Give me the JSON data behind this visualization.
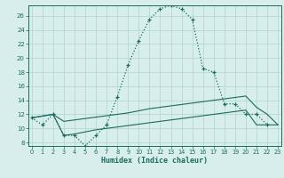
{
  "xlabel": "Humidex (Indice chaleur)",
  "bg_color": "#d8eeec",
  "grid_color": "#aed4d0",
  "line_color": "#1a6b5e",
  "x_ticks": [
    0,
    1,
    2,
    3,
    4,
    5,
    6,
    7,
    8,
    9,
    10,
    11,
    12,
    13,
    14,
    15,
    16,
    17,
    18,
    19,
    20,
    21,
    22,
    23
  ],
  "y_ticks": [
    8,
    10,
    12,
    14,
    16,
    18,
    20,
    22,
    24,
    26
  ],
  "xlim": [
    -0.3,
    23.3
  ],
  "ylim": [
    7.5,
    27.5
  ],
  "main_x": [
    0,
    1,
    2,
    3,
    4,
    5,
    6,
    7,
    8,
    9,
    10,
    11,
    12,
    13,
    14,
    15,
    16,
    17,
    18,
    19,
    20,
    21,
    22
  ],
  "main_y": [
    11.5,
    10.5,
    12.0,
    9.0,
    9.0,
    7.5,
    9.0,
    10.5,
    14.5,
    19.0,
    22.5,
    25.5,
    27.0,
    27.5,
    27.0,
    25.5,
    18.5,
    18.0,
    13.5,
    13.5,
    12.0,
    12.0,
    10.5
  ],
  "line2_x": [
    0,
    2,
    3,
    4,
    5,
    6,
    7,
    8,
    9,
    10,
    11,
    12,
    13,
    14,
    15,
    16,
    17,
    18,
    19,
    20,
    21,
    22,
    23
  ],
  "line2_y": [
    11.5,
    12.0,
    9.0,
    9.2,
    9.5,
    9.8,
    10.0,
    10.2,
    10.4,
    10.6,
    10.8,
    11.0,
    11.2,
    11.4,
    11.6,
    11.8,
    12.0,
    12.2,
    12.4,
    12.6,
    10.5,
    10.5,
    10.5
  ],
  "line3_x": [
    0,
    2,
    3,
    4,
    5,
    6,
    7,
    8,
    9,
    10,
    11,
    12,
    13,
    14,
    15,
    16,
    17,
    18,
    19,
    20,
    21,
    22,
    23
  ],
  "line3_y": [
    11.5,
    12.0,
    11.0,
    11.2,
    11.4,
    11.6,
    11.8,
    12.0,
    12.2,
    12.5,
    12.8,
    13.0,
    13.2,
    13.4,
    13.6,
    13.8,
    14.0,
    14.2,
    14.4,
    14.6,
    13.0,
    12.0,
    10.5
  ]
}
